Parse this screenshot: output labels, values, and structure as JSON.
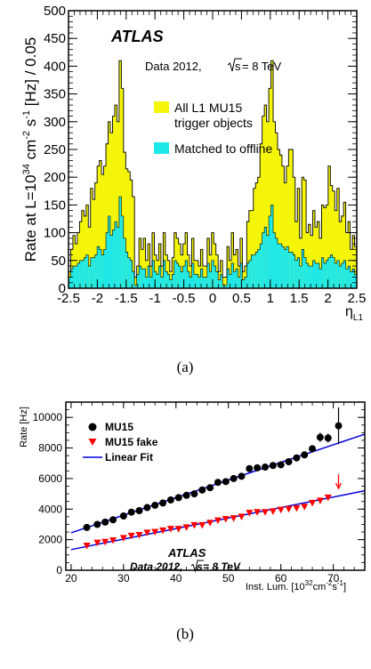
{
  "chart_data": [
    {
      "type": "bar",
      "panel_label": "(a)",
      "xlabel": "η",
      "xlabel_sub": "L1",
      "ylabel_parts": [
        "Rate at L=10",
        "34",
        " cm",
        "-2",
        " s",
        "-1",
        " [Hz] / 0.05"
      ],
      "xlim": [
        -2.5,
        2.5
      ],
      "ylim": [
        0,
        500
      ],
      "xtick_labels": [
        "-2.5",
        "-2",
        "-1.5",
        "-1",
        "-0.5",
        "0",
        "0.5",
        "1",
        "1.5",
        "2",
        "2.5"
      ],
      "ytick_labels": [
        "0",
        "50",
        "100",
        "150",
        "200",
        "250",
        "300",
        "350",
        "400",
        "450",
        "500"
      ],
      "annotations": {
        "atlas": "ATLAS",
        "data_prefix": "Data 2012, ",
        "sqrt_s": "s",
        "data_suffix": "= 8 TeV"
      },
      "legend": [
        "All L1 MU15",
        "trigger objects",
        "Matched to offline"
      ],
      "colors": {
        "all": "#f5f50a",
        "matched": "#1fe8e8"
      },
      "bin_width": 0.05,
      "bin_start": -2.5,
      "series": [
        {
          "name": "All L1 MU15 trigger objects",
          "values": [
            30,
            70,
            95,
            80,
            100,
            120,
            140,
            130,
            150,
            110,
            180,
            160,
            190,
            220,
            230,
            205,
            220,
            260,
            300,
            280,
            310,
            330,
            300,
            410,
            360,
            245,
            215,
            210,
            195,
            165,
            20,
            40,
            90,
            70,
            90,
            50,
            80,
            40,
            100,
            60,
            50,
            80,
            40,
            100,
            60,
            50,
            30,
            55,
            100,
            90,
            80,
            60,
            80,
            100,
            60,
            40,
            90,
            50,
            50,
            40,
            70,
            40,
            40,
            90,
            60,
            100,
            80,
            60,
            30,
            50,
            20,
            20,
            75,
            50,
            100,
            60,
            70,
            40,
            90,
            30,
            40,
            120,
            140,
            140,
            180,
            190,
            200,
            260,
            310,
            330,
            300,
            360,
            410,
            300,
            280,
            250,
            240,
            220,
            190,
            220,
            250,
            250,
            200,
            120,
            180,
            90,
            200,
            195,
            100,
            115,
            95,
            140,
            110,
            120,
            90,
            150,
            145,
            150,
            220,
            185,
            175,
            140,
            180,
            120,
            130,
            155,
            100,
            120,
            70,
            95,
            75
          ]
        },
        {
          "name": "Matched to offline",
          "values": [
            20,
            35,
            40,
            40,
            45,
            50,
            50,
            55,
            60,
            40,
            55,
            55,
            60,
            75,
            70,
            60,
            70,
            100,
            130,
            95,
            105,
            120,
            110,
            165,
            130,
            90,
            65,
            55,
            50,
            30,
            5,
            25,
            40,
            35,
            35,
            20,
            40,
            20,
            50,
            30,
            25,
            40,
            20,
            50,
            30,
            25,
            15,
            25,
            50,
            45,
            40,
            30,
            40,
            50,
            30,
            20,
            45,
            25,
            25,
            20,
            35,
            20,
            20,
            45,
            30,
            50,
            40,
            30,
            15,
            25,
            5,
            5,
            35,
            25,
            45,
            30,
            35,
            20,
            45,
            15,
            20,
            45,
            50,
            60,
            60,
            65,
            70,
            80,
            100,
            110,
            95,
            130,
            150,
            100,
            90,
            80,
            80,
            75,
            70,
            75,
            65,
            65,
            60,
            50,
            55,
            40,
            70,
            55,
            45,
            40,
            40,
            50,
            45,
            45,
            35,
            55,
            45,
            50,
            55,
            60,
            55,
            45,
            50,
            40,
            45,
            50,
            35,
            40,
            30,
            35,
            25
          ]
        }
      ]
    },
    {
      "type": "scatter",
      "panel_label": "(b)",
      "ylabel": "Rate [Hz]",
      "xlabel_parts": [
        "Inst. Lum. [10",
        "32",
        "cm",
        "-2",
        "s",
        "-1",
        "]"
      ],
      "xlim": [
        19,
        76
      ],
      "ylim": [
        0,
        11000
      ],
      "xtick_labels": [
        "20",
        "30",
        "40",
        "50",
        "60",
        "70"
      ],
      "ytick_labels": [
        "0",
        "2000",
        "4000",
        "6000",
        "8000",
        "10000"
      ],
      "annotations": {
        "atlas": "ATLAS",
        "data_prefix": "Data 2012, ",
        "sqrt_s": "s",
        "data_suffix": " = 8 TeV"
      },
      "series": [
        {
          "name": "MU15",
          "marker": "circle",
          "color": "#000000",
          "x": [
            23,
            25,
            26.5,
            28,
            30,
            31.5,
            33,
            34.5,
            36,
            37.5,
            39,
            40.5,
            42,
            43.5,
            45,
            46.5,
            48,
            49.5,
            51,
            52.5,
            54,
            55.5,
            57,
            58.5,
            60,
            61.5,
            63,
            64.5,
            66,
            67.5,
            69,
            71
          ],
          "y": [
            2800,
            3000,
            3150,
            3300,
            3550,
            3800,
            3900,
            4100,
            4250,
            4400,
            4600,
            4750,
            4900,
            5000,
            5250,
            5400,
            5750,
            5800,
            6000,
            6150,
            6650,
            6700,
            6750,
            6850,
            6900,
            7100,
            7350,
            7550,
            7950,
            8700,
            8650,
            9450
          ],
          "yerr": [
            0,
            0,
            0,
            0,
            0,
            0,
            0,
            0,
            0,
            0,
            0,
            0,
            0,
            0,
            0,
            0,
            0,
            0,
            0,
            0,
            0,
            0,
            0,
            0,
            0,
            0,
            0,
            0,
            0,
            300,
            300,
            1200
          ]
        },
        {
          "name": "MU15 fake",
          "marker": "triangle-down",
          "color": "#ff0000",
          "x": [
            23,
            25,
            26.5,
            28,
            30,
            31.5,
            33,
            34.5,
            36,
            37.5,
            39,
            40.5,
            42,
            43.5,
            45,
            46.5,
            48,
            49.5,
            51,
            52.5,
            54,
            55.5,
            57,
            58.5,
            60,
            61.5,
            63,
            64.5,
            66,
            67.5,
            69,
            71
          ],
          "y": [
            1600,
            1800,
            1850,
            1950,
            2100,
            2250,
            2300,
            2450,
            2500,
            2600,
            2700,
            2700,
            2800,
            2950,
            2950,
            3100,
            3250,
            3350,
            3400,
            3500,
            3750,
            3800,
            3800,
            3850,
            3950,
            4000,
            4050,
            4150,
            4400,
            4550,
            4750,
            5350
          ],
          "arrow_index": 31
        },
        {
          "name": "Linear Fit",
          "type": "line",
          "color": "#0000dd",
          "x": [
            20,
            76
          ],
          "y": [
            2450,
            8900
          ]
        },
        {
          "type": "line",
          "color": "#0000dd",
          "x": [
            20,
            76
          ],
          "y": [
            1350,
            5200
          ]
        }
      ]
    }
  ]
}
